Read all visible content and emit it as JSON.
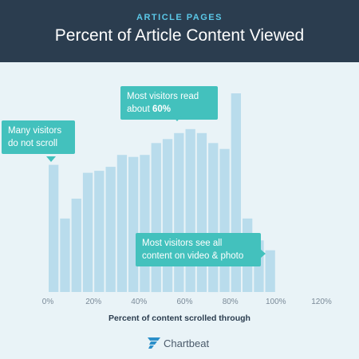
{
  "header": {
    "kicker": "ARTICLE PAGES",
    "title": "Percent of Article Content Viewed"
  },
  "callouts": {
    "no_scroll": {
      "line1": "Many visitors",
      "line2": "do not scroll"
    },
    "read_60": {
      "line1": "Most visitors read",
      "line2_prefix": "about ",
      "line2_bold": "60%"
    },
    "video_photo": {
      "line1": "Most visitors see all",
      "line2": "content on video & photo"
    }
  },
  "brand": {
    "name": "Chartbeat",
    "icon": "chartbeat-logo-icon"
  },
  "colors": {
    "bar": "#b9dcec",
    "background": "#e9f3f7",
    "header": "#2b3d4f",
    "accent": "#5bc8e8",
    "callout": "#43c1bd"
  },
  "chart_data": {
    "type": "bar",
    "title": "Percent of Article Content Viewed",
    "xlabel": "Percent of content scrolled through",
    "ylabel": "",
    "x_ticks": [
      "0%",
      "20%",
      "40%",
      "60%",
      "80%",
      "100%",
      "120%"
    ],
    "x_tick_values": [
      0,
      20,
      40,
      60,
      80,
      100,
      120
    ],
    "xlim": [
      0,
      120
    ],
    "ylim": [
      0,
      100
    ],
    "grid": false,
    "bar_width": 5,
    "x": [
      2.5,
      7.5,
      12.5,
      17.5,
      22.5,
      27.5,
      32.5,
      37.5,
      42.5,
      47.5,
      52.5,
      57.5,
      62.5,
      67.5,
      72.5,
      77.5,
      82.5,
      87.5,
      92.5,
      97.5,
      102.5,
      107.5,
      112.5,
      117.5
    ],
    "values": [
      64,
      37,
      47,
      60,
      61,
      63,
      69,
      68,
      69,
      75,
      77,
      80,
      82,
      80,
      75,
      72,
      100,
      37,
      26,
      21,
      0,
      0,
      0,
      0
    ]
  }
}
